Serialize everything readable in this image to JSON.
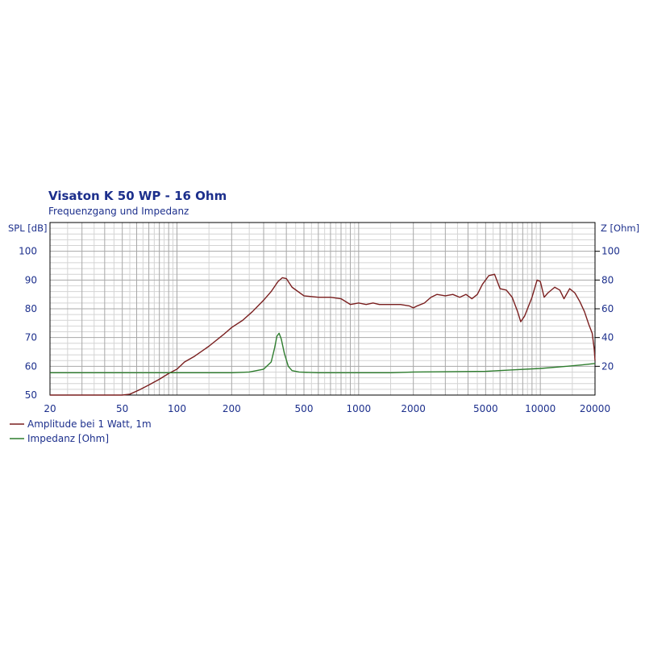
{
  "chart_data": {
    "type": "line",
    "title": "Visaton K 50 WP - 16 Ohm",
    "subtitle": "Frequenzgang und Impedanz",
    "x_scale": "log",
    "xlim": [
      20,
      20000
    ],
    "x_ticks": [
      20,
      50,
      100,
      200,
      500,
      1000,
      2000,
      5000,
      10000,
      20000
    ],
    "ylabel_left": "SPL [dB]",
    "ylabel_right": "Z [Ohm]",
    "ylim_left": [
      50,
      110
    ],
    "ylim_right": [
      0,
      120
    ],
    "y_ticks_left": [
      50,
      60,
      70,
      80,
      90,
      100
    ],
    "y_ticks_right": [
      20,
      40,
      60,
      80,
      100
    ],
    "grid": true,
    "legend_position": "bottom-left",
    "series": [
      {
        "name": "Amplitude bei 1 Watt, 1m",
        "axis": "left",
        "color": "#7a1f1f",
        "points": [
          [
            20,
            50
          ],
          [
            50,
            50
          ],
          [
            55,
            50.3
          ],
          [
            62,
            51.8
          ],
          [
            70,
            53.5
          ],
          [
            80,
            55.5
          ],
          [
            90,
            57.5
          ],
          [
            100,
            59
          ],
          [
            110,
            61.5
          ],
          [
            125,
            63.5
          ],
          [
            150,
            67
          ],
          [
            180,
            71
          ],
          [
            200,
            73.5
          ],
          [
            230,
            76
          ],
          [
            260,
            79
          ],
          [
            300,
            83
          ],
          [
            330,
            86
          ],
          [
            360,
            89.5
          ],
          [
            380,
            90.8
          ],
          [
            400,
            90.5
          ],
          [
            430,
            87.5
          ],
          [
            500,
            84.5
          ],
          [
            600,
            84
          ],
          [
            700,
            84
          ],
          [
            800,
            83.5
          ],
          [
            900,
            81.5
          ],
          [
            1000,
            82
          ],
          [
            1100,
            81.5
          ],
          [
            1200,
            82
          ],
          [
            1300,
            81.5
          ],
          [
            1500,
            81.5
          ],
          [
            1700,
            81.5
          ],
          [
            1900,
            81
          ],
          [
            2000,
            80.3
          ],
          [
            2100,
            81
          ],
          [
            2300,
            82
          ],
          [
            2500,
            84
          ],
          [
            2700,
            85
          ],
          [
            3000,
            84.5
          ],
          [
            3300,
            85
          ],
          [
            3600,
            84
          ],
          [
            3900,
            85
          ],
          [
            4200,
            83.5
          ],
          [
            4500,
            85
          ],
          [
            4800,
            88.5
          ],
          [
            5200,
            91.5
          ],
          [
            5600,
            92
          ],
          [
            6000,
            87
          ],
          [
            6500,
            86.5
          ],
          [
            7000,
            84
          ],
          [
            7500,
            79
          ],
          [
            7800,
            75.5
          ],
          [
            8200,
            77.5
          ],
          [
            9000,
            84
          ],
          [
            9600,
            90
          ],
          [
            10000,
            89.5
          ],
          [
            10500,
            84
          ],
          [
            11000,
            85.5
          ],
          [
            12000,
            87.5
          ],
          [
            12800,
            86.5
          ],
          [
            13500,
            83.5
          ],
          [
            14500,
            87
          ],
          [
            15500,
            85.5
          ],
          [
            16500,
            82.5
          ],
          [
            17500,
            79
          ],
          [
            18500,
            74.5
          ],
          [
            19300,
            71.5
          ],
          [
            19800,
            66
          ],
          [
            20000,
            62
          ]
        ]
      },
      {
        "name": "Impedanz [Ohm]",
        "axis": "right",
        "color": "#2e7d2e",
        "points": [
          [
            20,
            15.5
          ],
          [
            50,
            15.5
          ],
          [
            100,
            15.5
          ],
          [
            150,
            15.5
          ],
          [
            200,
            15.5
          ],
          [
            250,
            16
          ],
          [
            300,
            18
          ],
          [
            330,
            23
          ],
          [
            345,
            33
          ],
          [
            355,
            41
          ],
          [
            365,
            43
          ],
          [
            375,
            39
          ],
          [
            390,
            29
          ],
          [
            410,
            20
          ],
          [
            430,
            17
          ],
          [
            470,
            16
          ],
          [
            600,
            15.5
          ],
          [
            800,
            15.5
          ],
          [
            1000,
            15.5
          ],
          [
            1500,
            15.5
          ],
          [
            2000,
            16
          ],
          [
            3000,
            16.2
          ],
          [
            5000,
            16.5
          ],
          [
            7000,
            17.5
          ],
          [
            10000,
            18.5
          ],
          [
            14000,
            20
          ],
          [
            17000,
            21
          ],
          [
            20000,
            22
          ]
        ]
      }
    ]
  }
}
